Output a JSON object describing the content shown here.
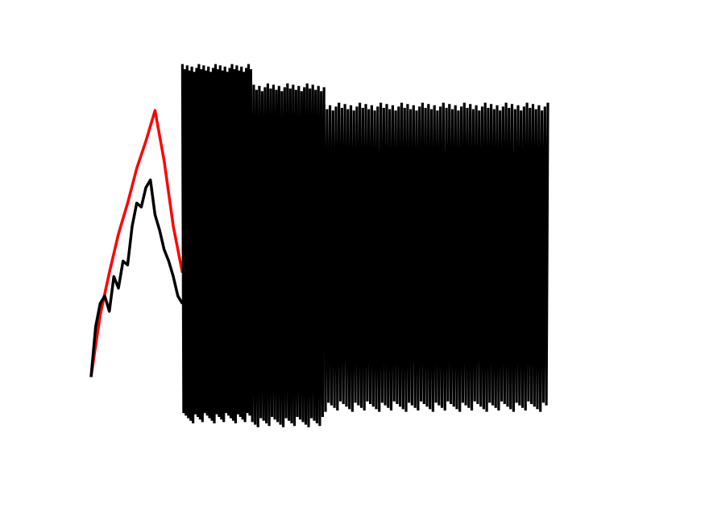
{
  "chart_data": {
    "type": "line",
    "title": "",
    "xlabel": "",
    "ylabel": "",
    "grid": false,
    "legend": "none",
    "xlim": [
      0,
      1
    ],
    "ylim": [
      0,
      1
    ],
    "series": [
      {
        "color": "#ff0000",
        "x": [
          0.0,
          0.02,
          0.04,
          0.06,
          0.08,
          0.1,
          0.12,
          0.14,
          0.16,
          0.18,
          0.2
        ],
        "y": [
          0.17,
          0.33,
          0.44,
          0.54,
          0.62,
          0.71,
          0.78,
          0.86,
          0.73,
          0.56,
          0.44
        ]
      },
      {
        "color": "#000000",
        "x": [
          0.0,
          0.01,
          0.02,
          0.03,
          0.04,
          0.05,
          0.06,
          0.07,
          0.08,
          0.09,
          0.1,
          0.11,
          0.12,
          0.13,
          0.14,
          0.15,
          0.16,
          0.17,
          0.18,
          0.19,
          0.2
        ],
        "y": [
          0.17,
          0.3,
          0.36,
          0.38,
          0.34,
          0.43,
          0.4,
          0.47,
          0.46,
          0.56,
          0.62,
          0.61,
          0.66,
          0.68,
          0.59,
          0.55,
          0.5,
          0.47,
          0.43,
          0.38,
          0.36
        ]
      },
      {
        "color": "#000000",
        "style": "dense-oscillation",
        "segments": [
          {
            "x0": 0.2,
            "x1": 0.35,
            "top": 0.98,
            "bottom": 0.05,
            "steps": 58
          },
          {
            "x0": 0.35,
            "x1": 0.51,
            "top": 0.93,
            "bottom": 0.04,
            "steps": 52
          },
          {
            "x0": 0.51,
            "x1": 1.0,
            "top": 0.88,
            "bottom": 0.08,
            "steps": 150
          }
        ]
      }
    ]
  }
}
